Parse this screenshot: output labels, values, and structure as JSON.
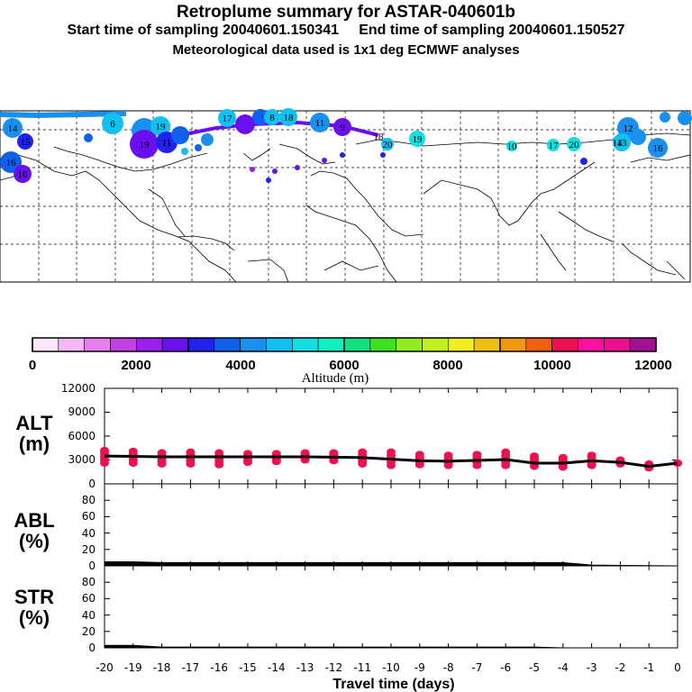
{
  "header": {
    "title": "Retroplume summary for ASTAR-040601b",
    "start_label": "Start time of sampling 20040601.150341",
    "end_label": "End time of sampling 20040601.150527",
    "met_label": "Meteorological data used is 1x1 deg ECMWF analyses"
  },
  "colors": {
    "ramp": [
      "#ffe6ff",
      "#f5b8f5",
      "#e680f0",
      "#c040e0",
      "#9a20f0",
      "#6a10f0",
      "#2222ee",
      "#1060ee",
      "#1a90ee",
      "#10c0f0",
      "#10e0e0",
      "#10f0c0",
      "#10e080",
      "#40e020",
      "#90ee20",
      "#c0f020",
      "#f0f020",
      "#f0c010",
      "#f09810",
      "#f06010",
      "#ee1050",
      "#ff10a0",
      "#ee1090",
      "#a01090"
    ],
    "alt_marker": "#ee1050",
    "line": "#000000"
  },
  "colorbar": {
    "ticks": [
      "0",
      "2000",
      "4000",
      "6000",
      "8000",
      "10000",
      "12000"
    ],
    "label": "Altitude (m)"
  },
  "map": {
    "cluster_labels": [
      "14",
      "15",
      "6",
      "19",
      "17",
      "8",
      "18",
      "9",
      "11",
      "20",
      "19",
      "18",
      "13",
      "12",
      "14",
      "16",
      "16",
      "17",
      "20",
      "10",
      "19",
      "11",
      "16"
    ]
  },
  "chart_data": [
    {
      "type": "line",
      "name": "ALT",
      "ylabel": "ALT (m)",
      "ylabel_line1": "ALT",
      "ylabel_line2": "(m)",
      "ylim": [
        0,
        12000
      ],
      "yticks": [
        "12000",
        "9000",
        "6000",
        "3000",
        "0"
      ],
      "x": [
        -20,
        -19,
        -18,
        -17,
        -16,
        -15,
        -14,
        -13,
        -12,
        -11,
        -10,
        -9,
        -8,
        -7,
        -6,
        -5,
        -4,
        -3,
        -2,
        -1,
        0
      ],
      "values": [
        3500,
        3450,
        3400,
        3400,
        3400,
        3400,
        3400,
        3400,
        3350,
        3300,
        3100,
        2900,
        2850,
        2950,
        3050,
        2600,
        2600,
        2900,
        2700,
        2200,
        2600
      ],
      "spread_max": [
        4200,
        4100,
        3900,
        4000,
        3900,
        3800,
        3800,
        3900,
        3900,
        4000,
        4000,
        3700,
        3600,
        3700,
        4000,
        3500,
        3300,
        3600,
        3000,
        2500,
        2600
      ],
      "spread_min": [
        2600,
        2600,
        2500,
        2500,
        2400,
        2700,
        2800,
        3000,
        2900,
        2500,
        2300,
        2400,
        2300,
        2300,
        2300,
        2200,
        2100,
        2300,
        2500,
        2000,
        2600
      ]
    },
    {
      "type": "area",
      "name": "ABL",
      "ylabel_line1": "ABL",
      "ylabel_line2": "(%)",
      "ylim": [
        0,
        100
      ],
      "yticks": [
        "80",
        "60",
        "40",
        "20",
        "0"
      ],
      "x": [
        -20,
        -19,
        -18,
        -17,
        -16,
        -15,
        -14,
        -13,
        -12,
        -11,
        -10,
        -9,
        -8,
        -7,
        -6,
        -5,
        -4,
        -3,
        -2,
        -1,
        0
      ],
      "values": [
        5,
        5,
        4,
        4,
        4,
        4,
        4,
        4,
        4,
        4,
        4,
        4,
        4,
        4,
        4,
        4,
        4,
        1,
        0.5,
        0.3,
        0
      ]
    },
    {
      "type": "area",
      "name": "STR",
      "ylabel_line1": "STR",
      "ylabel_line2": "(%)",
      "ylim": [
        0,
        100
      ],
      "yticks": [
        "80",
        "60",
        "40",
        "20",
        "0"
      ],
      "x": [
        -20,
        -19,
        -18,
        -17,
        -16,
        -15,
        -14,
        -13,
        -12,
        -11,
        -10,
        -9,
        -8,
        -7,
        -6,
        -5,
        -4,
        -3,
        -2,
        -1,
        0
      ],
      "values": [
        3,
        3,
        1,
        1,
        1,
        1,
        1,
        1,
        1,
        1,
        1,
        1,
        1,
        1,
        1,
        1,
        0,
        0,
        0,
        0,
        0
      ],
      "xlabel": "Travel time (days)",
      "xticks": [
        "-20",
        "-19",
        "-18",
        "-17",
        "-16",
        "-15",
        "-14",
        "-13",
        "-12",
        "-11",
        "-10",
        "-9",
        "-8",
        "-7",
        "-6",
        "-5",
        "-4",
        "-3",
        "-2",
        "-1",
        "0"
      ]
    }
  ]
}
